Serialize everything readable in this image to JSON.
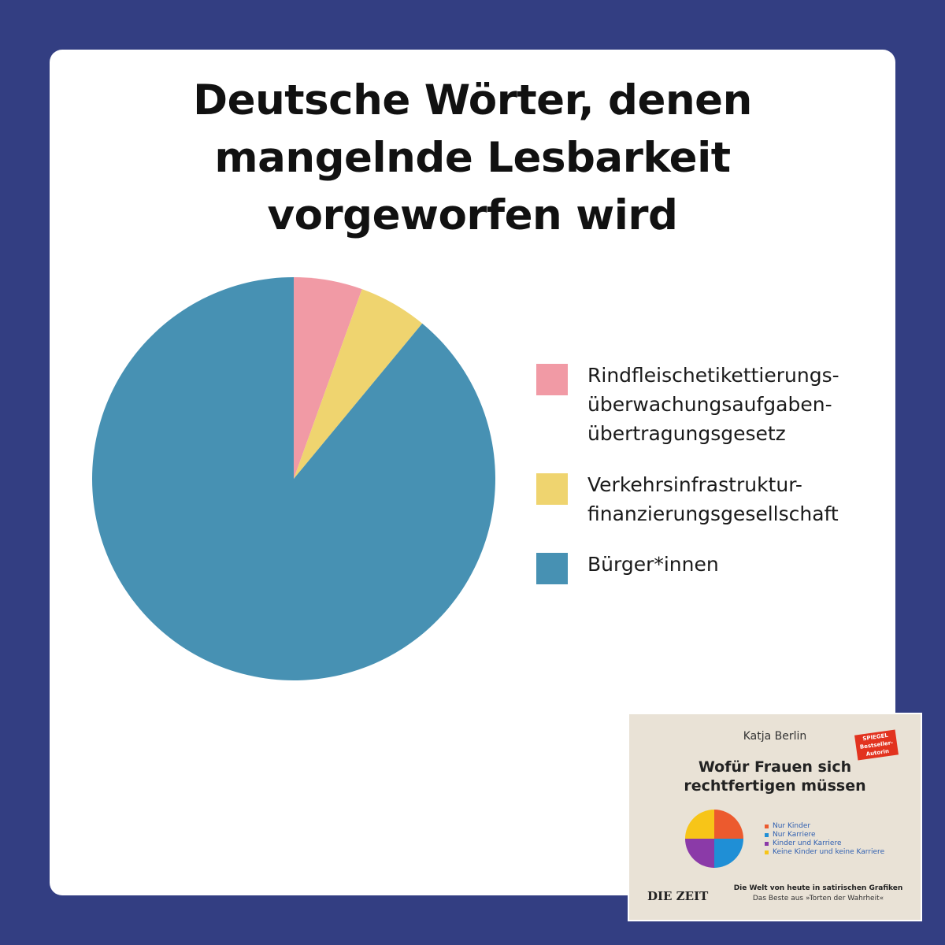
{
  "title_lines": [
    "Deutsche Wörter, denen",
    "mangelnde Lesbarkeit",
    "vorgeworfen wird"
  ],
  "chart_data": {
    "type": "pie",
    "title": "Deutsche Wörter, denen mangelnde Lesbarkeit vorgeworfen wird",
    "legend_position": "right",
    "slices": [
      {
        "label_lines": [
          "Rindfleischetikettierungs-",
          "überwachungsaufgaben-",
          "übertragungsgesetz"
        ],
        "value": 5.5,
        "color": "#f19aa5"
      },
      {
        "label_lines": [
          "Verkehrsinfrastruktur-",
          "finanzierungsgesellschaft"
        ],
        "value": 5.5,
        "color": "#efd46f"
      },
      {
        "label_lines": [
          "Bürger*innen"
        ],
        "value": 89,
        "color": "#4791b3"
      }
    ]
  },
  "book": {
    "author": "Katja Berlin",
    "badge_lines": [
      "SPIEGEL",
      "Bestseller-",
      "Autorin"
    ],
    "title_lines": [
      "Wofür Frauen sich",
      "rechtfertigen müssen"
    ],
    "mini_legend": [
      {
        "label": "Nur Kinder",
        "color": "#ec5a2e"
      },
      {
        "label": "Nur Karriere",
        "color": "#1f8fd6"
      },
      {
        "label": "Kinder und Karriere",
        "color": "#8b3aa8"
      },
      {
        "label": "Keine Kinder und keine Karriere",
        "color": "#f7c518"
      }
    ],
    "brand": "DIE ZEIT",
    "subtitle": "Die Welt von heute in satirischen Grafiken",
    "subtitle2": "Das Beste aus »Torten der Wahrheit«"
  },
  "colors": {
    "background": "#333e82",
    "card": "#ffffff"
  }
}
